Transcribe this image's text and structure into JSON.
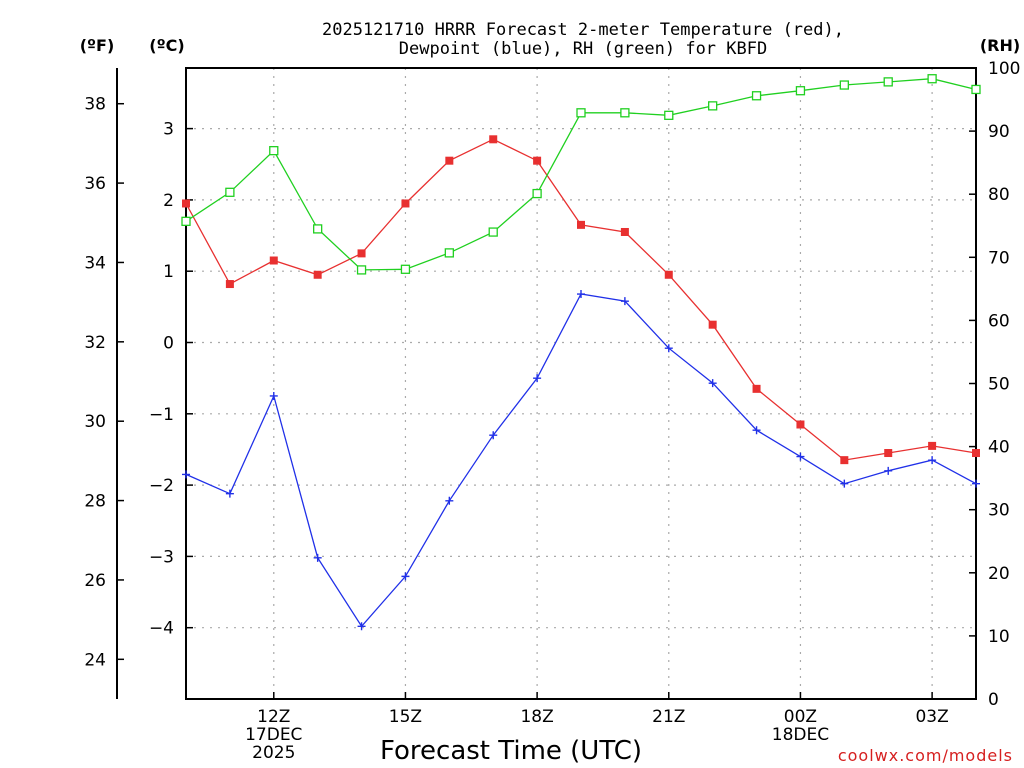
{
  "chart_data": {
    "type": "line",
    "title": "2025121710 HRRR Forecast 2-meter Temperature (red), Dewpoint (blue), RH (green) for KBFD",
    "title_lines": [
      "2025121710 HRRR Forecast 2-meter Temperature (red),",
      "Dewpoint (blue), RH (green) for KBFD"
    ],
    "xlabel": "Forecast Time (UTC)",
    "credit": "coolwx.com/models",
    "units": {
      "fahrenheit": "(ºF)",
      "celsius": "(ºC)",
      "rh": "(RH)"
    },
    "x_hours": [
      10,
      11,
      12,
      13,
      14,
      15,
      16,
      17,
      18,
      19,
      20,
      21,
      22,
      23,
      24,
      25,
      26,
      27,
      28
    ],
    "xlim": [
      10,
      28
    ],
    "x_ticks": [
      {
        "hour": 12,
        "lines": [
          "12Z",
          "17DEC",
          "2025"
        ]
      },
      {
        "hour": 15,
        "lines": [
          "15Z"
        ]
      },
      {
        "hour": 18,
        "lines": [
          "18Z"
        ]
      },
      {
        "hour": 21,
        "lines": [
          "21Z"
        ]
      },
      {
        "hour": 24,
        "lines": [
          "00Z",
          "18DEC"
        ]
      },
      {
        "hour": 27,
        "lines": [
          "03Z"
        ]
      }
    ],
    "y_celsius": {
      "range": [
        -5,
        3.85
      ],
      "ticks": [
        -4,
        -3,
        -2,
        -1,
        0,
        1,
        2,
        3
      ]
    },
    "y_fahrenheit": {
      "range": [
        23,
        38.9
      ],
      "ticks": [
        24,
        26,
        28,
        30,
        32,
        34,
        36,
        38
      ]
    },
    "y_rh": {
      "range": [
        0,
        100
      ],
      "ticks": [
        0,
        10,
        20,
        30,
        40,
        50,
        60,
        70,
        80,
        90,
        100
      ]
    },
    "grid": true,
    "series": [
      {
        "name": "Temperature",
        "axis": "celsius",
        "color": "#e83030",
        "marker": "filled-square",
        "values": [
          1.95,
          0.82,
          1.15,
          0.95,
          1.25,
          1.95,
          2.55,
          2.85,
          2.55,
          1.65,
          1.55,
          0.95,
          0.25,
          -0.65,
          -1.15,
          -1.65,
          -1.55,
          -1.45,
          -1.55
        ]
      },
      {
        "name": "Dewpoint",
        "axis": "celsius",
        "color": "#2030e8",
        "marker": "plus",
        "values": [
          -1.85,
          -2.12,
          -0.75,
          -3.02,
          -3.98,
          -3.28,
          -2.22,
          -1.3,
          -0.5,
          0.68,
          0.58,
          -0.08,
          -0.57,
          -1.23,
          -1.6,
          -1.98,
          -1.8,
          -1.65,
          -1.98
        ]
      },
      {
        "name": "RH",
        "axis": "rh",
        "color": "#20d020",
        "marker": "open-square",
        "values": [
          75.7,
          80.3,
          86.9,
          74.5,
          68.0,
          68.1,
          70.7,
          74.0,
          80.1,
          92.9,
          92.9,
          92.5,
          94.0,
          95.6,
          96.4,
          97.3,
          97.8,
          98.3,
          96.6
        ]
      }
    ]
  }
}
